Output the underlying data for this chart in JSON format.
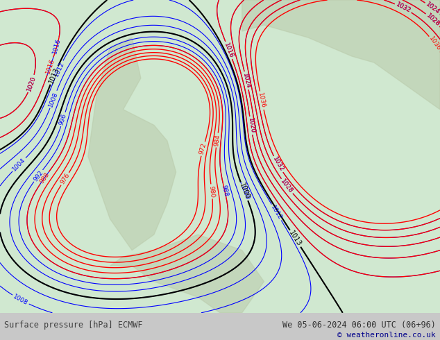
{
  "title_left": "Surface pressure [hPa] ECMWF",
  "title_right": "We 05-06-2024 06:00 UTC (06+96)",
  "copyright": "© weatheronline.co.uk",
  "bg_color": "#e8f4e8",
  "map_bg": "#d0e8d0",
  "ocean_color": "#ffffff",
  "bottom_bar_color": "#c8c8c8",
  "text_color_left": "#404040",
  "text_color_right": "#303030",
  "copyright_color": "#00008B",
  "bottom_bar_height": 0.08,
  "figsize": [
    6.34,
    4.9
  ],
  "dpi": 100
}
